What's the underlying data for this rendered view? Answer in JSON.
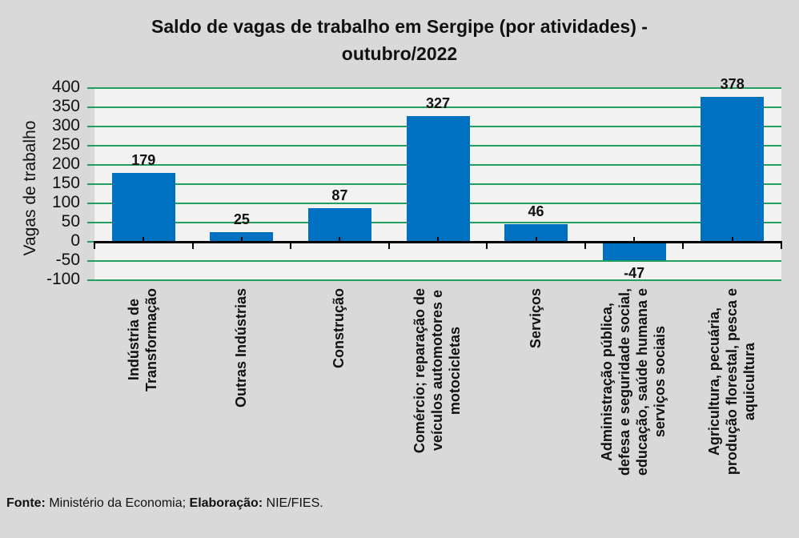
{
  "title": "Saldo de vagas de trabalho em Sergipe (por atividades) -\noutubro/2022",
  "footer": {
    "fonte_label": "Fonte:",
    "fonte_text": " Ministério da Economia; ",
    "elaboracao_label": "Elaboração:",
    "elaboracao_text": " NIE/FIES."
  },
  "chart_data": {
    "type": "bar",
    "title": "Saldo de vagas de trabalho em Sergipe (por atividades) - outubro/2022",
    "xlabel": "",
    "ylabel": "Vagas de trabalho",
    "ylim": [
      -100,
      400
    ],
    "ytick_step": 50,
    "grid": true,
    "legend": false,
    "categories": [
      "Indústria de\nTransformação",
      "Outras Indústrias",
      "Construção",
      "Comércio; reparação de\nveículos automotores e\nmotocicletas",
      "Serviços",
      "Administração pública,\ndefesa e seguridade social,\neducação, saúde humana e\nserviços sociais",
      "Agricultura, pecuária,\nprodução florestal, pesca e\naquicultura"
    ],
    "values": [
      179,
      25,
      87,
      327,
      46,
      -47,
      378
    ],
    "colors": {
      "bar": "#0070C0",
      "gridline": "#21A05D",
      "plot_background": "#F2F2F2",
      "canvas_background": "#D9D9D9",
      "axis": "#000000",
      "text": "#111111"
    }
  }
}
